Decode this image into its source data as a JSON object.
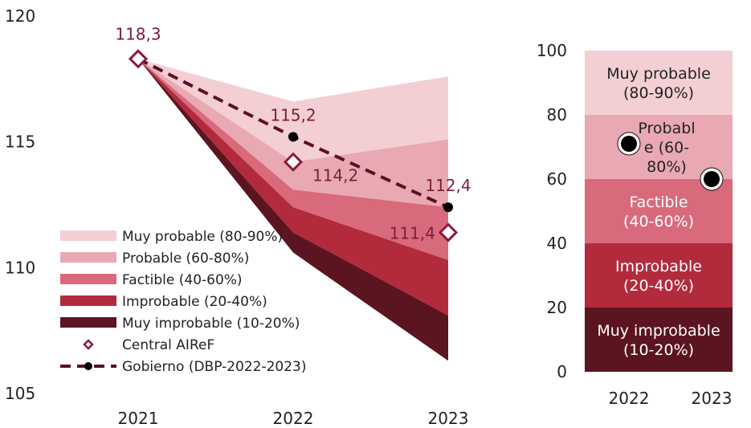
{
  "chart_data": [
    {
      "type": "area",
      "title": "",
      "xlabel": "",
      "ylabel": "",
      "x": [
        "2021",
        "2022",
        "2023"
      ],
      "ylim": [
        105,
        120
      ],
      "yticks": [
        "105",
        "110",
        "115",
        "120"
      ],
      "fan_bands": [
        {
          "name": "Muy probable (80-90%)",
          "color": "#f3cfd4",
          "upper": [
            118.3,
            116.6,
            117.6
          ],
          "lower": [
            118.3,
            114.2,
            115.1
          ]
        },
        {
          "name": "Probable (60-80%)",
          "color": "#e9a9b2",
          "upper": [
            118.3,
            114.2,
            115.1
          ],
          "lower": [
            118.3,
            113.1,
            112.4
          ]
        },
        {
          "name": "Factible (40-60%)",
          "color": "#d86a7c",
          "upper": [
            118.3,
            113.1,
            112.4
          ],
          "lower": [
            118.3,
            112.4,
            110.3
          ]
        },
        {
          "name": "Improbable (20-40%)",
          "color": "#b22b3d",
          "upper": [
            118.3,
            112.4,
            110.3
          ],
          "lower": [
            118.3,
            111.4,
            108.1
          ]
        },
        {
          "name": "Muy improbable (10-20%)",
          "color": "#5b1520",
          "upper": [
            118.3,
            111.4,
            108.1
          ],
          "lower": [
            118.3,
            110.6,
            106.3
          ]
        }
      ],
      "series": [
        {
          "name": "Central AIReF",
          "values": [
            118.3,
            114.2,
            111.4
          ],
          "labels": [
            "118,3",
            "114,2",
            "111,4"
          ]
        },
        {
          "name": "Gobierno (DBP-2022-2023)",
          "values": [
            118.3,
            115.2,
            112.4
          ],
          "labels": [
            "",
            "115,2",
            "112,4"
          ]
        }
      ],
      "legend": {
        "placement": "bottom-left"
      }
    },
    {
      "type": "bar",
      "title": "",
      "categories": [
        "2022",
        "2023"
      ],
      "ylim": [
        0,
        100
      ],
      "yticks": [
        "0",
        "20",
        "40",
        "60",
        "80",
        "100"
      ],
      "bands": [
        {
          "label": "Muy improbable\n(10-20%)",
          "from": 0,
          "to": 20,
          "color": "#5b1520",
          "text_color": "#ffffff"
        },
        {
          "label": "Improbable\n(20-40%)",
          "from": 20,
          "to": 40,
          "color": "#b22b3d",
          "text_color": "#ffffff"
        },
        {
          "label": "Factible\n(40-60%)",
          "from": 40,
          "to": 60,
          "color": "#d86a7c",
          "text_color": "#ffffff"
        },
        {
          "label": "Probabl\ne (60-\n80%)",
          "from": 60,
          "to": 80,
          "color": "#e9a9b2",
          "text_color": "#222222"
        },
        {
          "label": "Muy probable\n(80-90%)",
          "from": 80,
          "to": 100,
          "color": "#f3cfd4",
          "text_color": "#222222"
        }
      ],
      "points": [
        {
          "category": "2022",
          "value": 71
        },
        {
          "category": "2023",
          "value": 60
        }
      ]
    }
  ]
}
